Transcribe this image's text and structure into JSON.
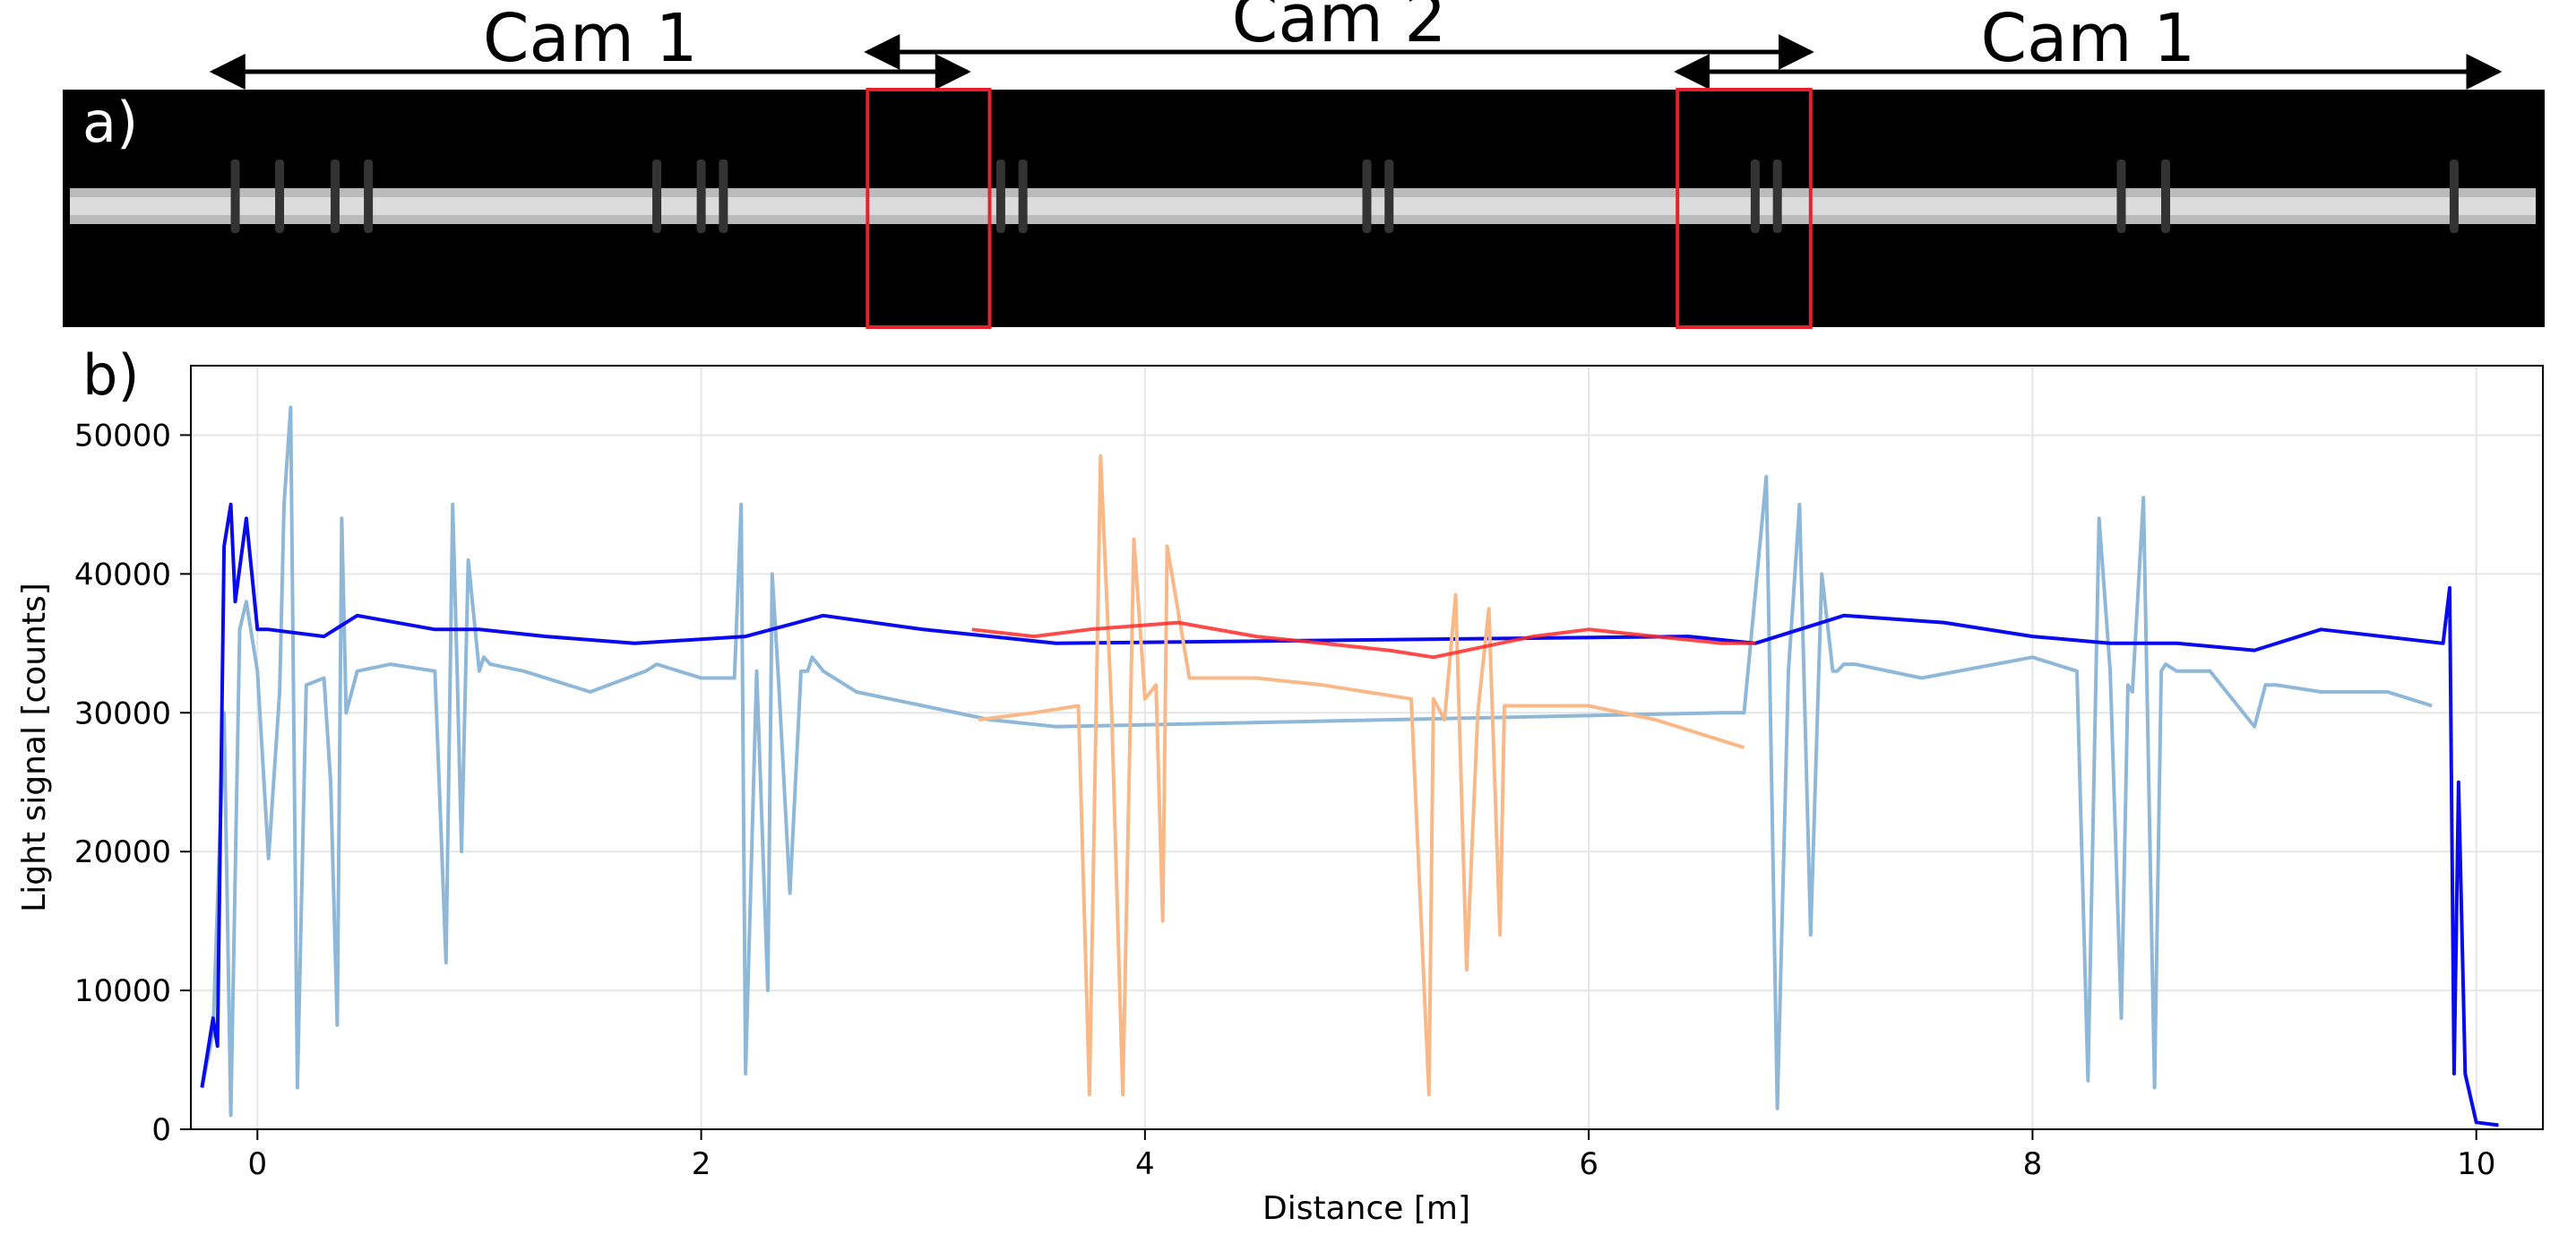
{
  "camera_annotations": [
    {
      "label": "Cam 1",
      "from_m": -0.2,
      "to_m": 3.2
    },
    {
      "label": "Cam 2",
      "from_m": 2.75,
      "to_m": 7.0
    },
    {
      "label": "Cam 1",
      "from_m": 6.4,
      "to_m": 10.1
    }
  ],
  "image_panel": {
    "label": "a)",
    "overlap_regions_m": [
      [
        2.75,
        3.3
      ],
      [
        6.4,
        7.0
      ]
    ],
    "overlap_color": "#e8202a",
    "dark_rings_m": [
      -0.1,
      0.1,
      0.35,
      0.5,
      1.8,
      2.0,
      2.1,
      3.35,
      3.45,
      5.0,
      5.1,
      6.75,
      6.85,
      8.4,
      8.6,
      9.9
    ]
  },
  "chart_data": {
    "type": "line",
    "panel_label": "b)",
    "xlabel": "Distance [m]",
    "ylabel": "Light signal [counts]",
    "xlim": [
      -0.3,
      10.3
    ],
    "ylim": [
      0,
      55000
    ],
    "xticks": [
      0,
      2,
      4,
      6,
      8,
      10
    ],
    "yticks": [
      0,
      10000,
      20000,
      30000,
      40000,
      50000
    ],
    "grid": true,
    "series": [
      {
        "color": "#8fb8d8",
        "x": [
          -0.25,
          -0.2,
          -0.15,
          -0.12,
          -0.08,
          -0.05,
          0.0,
          0.05,
          0.1,
          0.12,
          0.15,
          0.18,
          0.22,
          0.3,
          0.33,
          0.36,
          0.38,
          0.4,
          0.45,
          0.6,
          0.8,
          0.85,
          0.88,
          0.9,
          0.92,
          0.95,
          1.0,
          1.02,
          1.05,
          1.2,
          1.5,
          1.75,
          1.8,
          2.0,
          2.15,
          2.18,
          2.2,
          2.25,
          2.3,
          2.32,
          2.35,
          2.4,
          2.45,
          2.48,
          2.5,
          2.55,
          2.7,
          3.0,
          3.3,
          3.6,
          6.6,
          6.7,
          6.8,
          6.85,
          6.9,
          6.95,
          7.0,
          7.05,
          7.1,
          7.12,
          7.15,
          7.2,
          7.5,
          8.0,
          8.2,
          8.25,
          8.3,
          8.35,
          8.4,
          8.43,
          8.45,
          8.5,
          8.55,
          8.58,
          8.6,
          8.65,
          8.8,
          9.0,
          9.05,
          9.1,
          9.3,
          9.6,
          9.8
        ],
        "y": [
          3000,
          7000,
          30000,
          1000,
          36000,
          38000,
          33000,
          19500,
          31500,
          45000,
          52000,
          3000,
          32000,
          32500,
          25000,
          7500,
          44000,
          30000,
          33000,
          33500,
          33000,
          12000,
          45000,
          33000,
          20000,
          41000,
          33000,
          34000,
          33500,
          33000,
          31500,
          33000,
          33500,
          32500,
          32500,
          45000,
          4000,
          33000,
          10000,
          40000,
          32000,
          17000,
          33000,
          33000,
          34000,
          33000,
          31500,
          30500,
          29500,
          29000,
          30000,
          30000,
          47000,
          1500,
          33000,
          45000,
          14000,
          40000,
          33000,
          33000,
          33500,
          33500,
          32500,
          34000,
          33000,
          3500,
          44000,
          33000,
          8000,
          32000,
          31500,
          45500,
          3000,
          33000,
          33500,
          33000,
          33000,
          29000,
          32000,
          32000,
          31500,
          31500,
          30500
        ]
      },
      {
        "color": "#0a0aee",
        "x": [
          -0.25,
          -0.2,
          -0.18,
          -0.15,
          -0.12,
          -0.1,
          -0.05,
          0.0,
          0.05,
          0.3,
          0.45,
          0.8,
          1.0,
          1.3,
          1.7,
          2.2,
          2.55,
          3.0,
          3.6,
          6.45,
          6.75,
          7.15,
          7.6,
          8.0,
          8.35,
          8.65,
          9.0,
          9.3,
          9.85,
          9.88,
          9.9,
          9.92,
          9.95,
          10.0,
          10.1
        ],
        "y": [
          3000,
          8000,
          6000,
          42000,
          45000,
          38000,
          44000,
          36000,
          36000,
          35500,
          37000,
          36000,
          36000,
          35500,
          35000,
          35500,
          37000,
          36000,
          35000,
          35500,
          35000,
          37000,
          36500,
          35500,
          35000,
          35000,
          34500,
          36000,
          35000,
          39000,
          4000,
          25000,
          4000,
          500,
          300
        ]
      },
      {
        "color": "#f8b888",
        "x": [
          3.25,
          3.5,
          3.7,
          3.75,
          3.8,
          3.85,
          3.9,
          3.95,
          4.0,
          4.05,
          4.08,
          4.1,
          4.2,
          4.5,
          4.8,
          5.2,
          5.28,
          5.3,
          5.35,
          5.4,
          5.45,
          5.5,
          5.55,
          5.6,
          5.62,
          5.7,
          6.0,
          6.3,
          6.6,
          6.7
        ],
        "y": [
          29500,
          30000,
          30500,
          2500,
          48500,
          30000,
          2500,
          42500,
          31000,
          32000,
          15000,
          42000,
          32500,
          32500,
          32000,
          31000,
          2500,
          31000,
          29500,
          38500,
          11500,
          30000,
          37500,
          14000,
          30500,
          30500,
          30500,
          29500,
          28000,
          27500
        ]
      },
      {
        "color": "#ff2a2a",
        "x": [
          3.22,
          3.5,
          3.75,
          4.15,
          4.5,
          4.8,
          5.1,
          5.3,
          5.75,
          6.0,
          6.3,
          6.6,
          6.75
        ],
        "y": [
          36000,
          35500,
          36000,
          36500,
          35500,
          35000,
          34500,
          34000,
          35500,
          36000,
          35500,
          35000,
          35000
        ]
      }
    ]
  }
}
